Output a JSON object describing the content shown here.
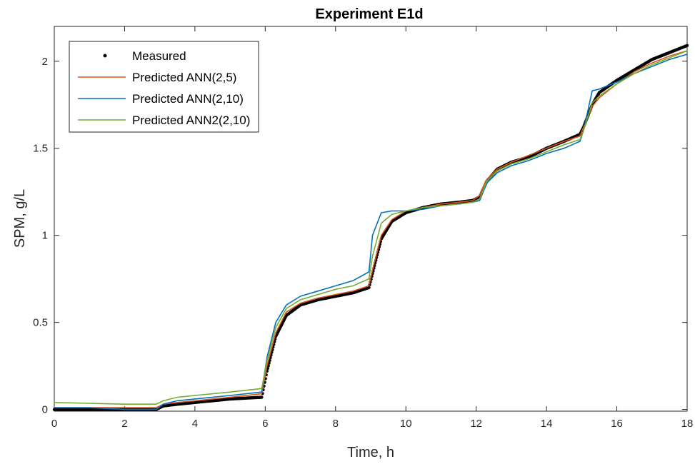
{
  "chart_data": {
    "type": "line",
    "title": "Experiment E1d",
    "xlabel": "Time, h",
    "ylabel": "SPM, g/L",
    "xlim": [
      0,
      18
    ],
    "ylim": [
      -0.01,
      2.2
    ],
    "xticks": [
      0,
      2,
      4,
      6,
      8,
      10,
      12,
      14,
      16,
      18
    ],
    "yticks": [
      0,
      0.5,
      1,
      1.5,
      2
    ],
    "xtick_labels": [
      "0",
      "2",
      "4",
      "6",
      "8",
      "10",
      "12",
      "14",
      "16",
      "18"
    ],
    "ytick_labels": [
      "0",
      "0.5",
      "1",
      "1.5",
      "2"
    ],
    "grid": false,
    "legend_position": "top-left",
    "series": [
      {
        "name": "Measured",
        "style": "dots",
        "color": "#000000",
        "x": [
          0,
          1,
          2,
          2.9,
          3.1,
          3.5,
          4,
          5,
          5.9,
          6.05,
          6.3,
          6.6,
          7,
          7.5,
          8,
          8.5,
          8.95,
          9.05,
          9.3,
          9.6,
          10,
          10.5,
          11,
          11.5,
          11.9,
          12.1,
          12.3,
          12.6,
          13,
          13.5,
          14,
          14.5,
          14.95,
          15.05,
          15.3,
          15.5,
          16,
          16.5,
          17,
          17.5,
          18
        ],
        "y": [
          0.0,
          0.0,
          0.0,
          0.0,
          0.02,
          0.03,
          0.04,
          0.06,
          0.07,
          0.22,
          0.42,
          0.54,
          0.6,
          0.63,
          0.65,
          0.67,
          0.7,
          0.78,
          0.98,
          1.08,
          1.13,
          1.16,
          1.18,
          1.19,
          1.2,
          1.22,
          1.31,
          1.38,
          1.42,
          1.45,
          1.5,
          1.54,
          1.58,
          1.62,
          1.75,
          1.82,
          1.89,
          1.95,
          2.01,
          2.05,
          2.09
        ]
      },
      {
        "name": "Predicted ANN(2,5)",
        "style": "line",
        "color": "#d95319",
        "x": [
          0,
          1,
          2,
          2.9,
          3.1,
          3.5,
          4,
          5,
          5.9,
          6.05,
          6.3,
          6.6,
          7,
          7.5,
          8,
          8.5,
          8.95,
          9.05,
          9.3,
          9.6,
          10,
          10.5,
          11,
          11.5,
          11.9,
          12.1,
          12.3,
          12.6,
          13,
          13.5,
          14,
          14.5,
          14.95,
          15.05,
          15.3,
          15.5,
          16,
          16.5,
          17,
          17.5,
          18
        ],
        "y": [
          0.01,
          0.01,
          0.01,
          0.01,
          0.03,
          0.04,
          0.05,
          0.07,
          0.09,
          0.25,
          0.44,
          0.56,
          0.61,
          0.64,
          0.66,
          0.68,
          0.71,
          0.8,
          1.0,
          1.09,
          1.14,
          1.16,
          1.18,
          1.19,
          1.2,
          1.23,
          1.32,
          1.38,
          1.42,
          1.46,
          1.5,
          1.54,
          1.57,
          1.62,
          1.74,
          1.79,
          1.87,
          1.94,
          1.99,
          2.03,
          2.06
        ]
      },
      {
        "name": "Predicted ANN(2,10)",
        "style": "line",
        "color": "#0072bd",
        "x": [
          0,
          1,
          2,
          2.9,
          3.1,
          3.5,
          4,
          5,
          5.9,
          6.05,
          6.3,
          6.6,
          7,
          7.5,
          8,
          8.5,
          8.95,
          9.05,
          9.3,
          9.6,
          10,
          10.5,
          11,
          11.5,
          11.9,
          12.1,
          12.3,
          12.6,
          13,
          13.5,
          14,
          14.5,
          14.95,
          15.05,
          15.3,
          15.5,
          16,
          16.5,
          17,
          17.5,
          18
        ],
        "y": [
          0.01,
          0.01,
          0.0,
          0.0,
          0.03,
          0.05,
          0.06,
          0.08,
          0.1,
          0.3,
          0.5,
          0.6,
          0.65,
          0.68,
          0.71,
          0.74,
          0.79,
          1.0,
          1.13,
          1.14,
          1.14,
          1.15,
          1.17,
          1.18,
          1.19,
          1.2,
          1.3,
          1.36,
          1.4,
          1.43,
          1.47,
          1.5,
          1.54,
          1.6,
          1.83,
          1.84,
          1.88,
          1.93,
          1.97,
          2.01,
          2.04
        ]
      },
      {
        "name": "Predicted ANN2(2,10)",
        "style": "line",
        "color": "#77ac30",
        "x": [
          0,
          1,
          2,
          2.9,
          3.1,
          3.5,
          4,
          5,
          5.9,
          6.05,
          6.3,
          6.6,
          7,
          7.5,
          8,
          8.5,
          8.95,
          9.05,
          9.3,
          9.6,
          10,
          10.5,
          11,
          11.5,
          11.9,
          12.1,
          12.3,
          12.6,
          13,
          13.5,
          14,
          14.5,
          14.95,
          15.05,
          15.3,
          15.5,
          16,
          16.5,
          17,
          17.5,
          18
        ],
        "y": [
          0.04,
          0.035,
          0.03,
          0.03,
          0.05,
          0.07,
          0.08,
          0.1,
          0.12,
          0.28,
          0.47,
          0.58,
          0.63,
          0.66,
          0.69,
          0.71,
          0.75,
          0.88,
          1.07,
          1.12,
          1.14,
          1.16,
          1.17,
          1.18,
          1.19,
          1.21,
          1.31,
          1.37,
          1.41,
          1.44,
          1.48,
          1.52,
          1.55,
          1.6,
          1.76,
          1.8,
          1.87,
          1.93,
          1.98,
          2.02,
          2.06
        ]
      }
    ]
  }
}
